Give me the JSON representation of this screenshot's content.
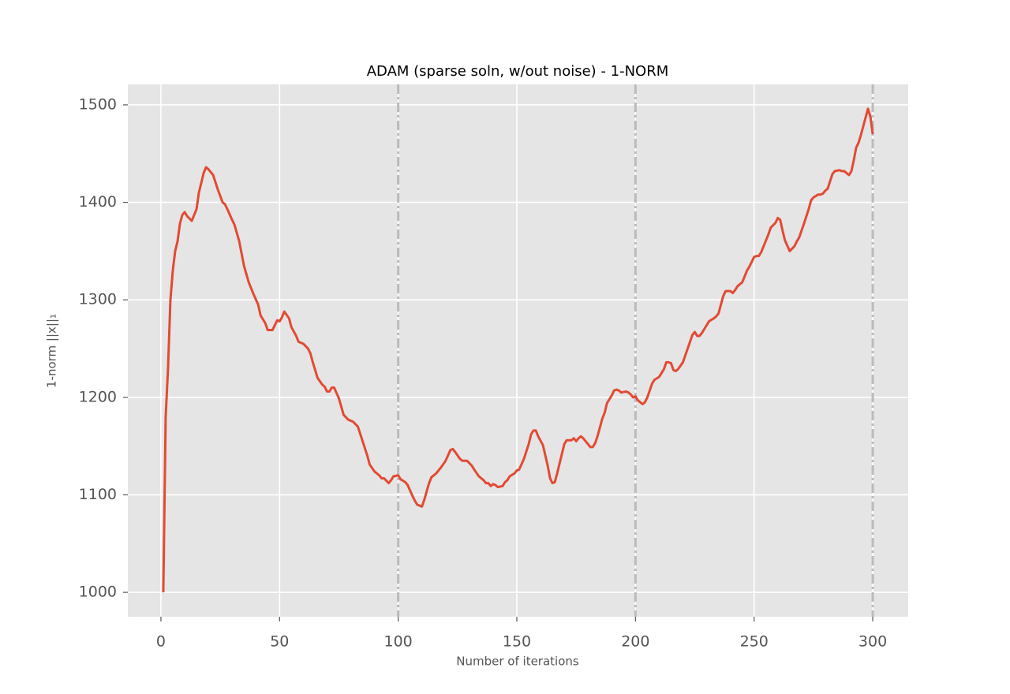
{
  "chart_data": {
    "type": "line",
    "title": "ADAM (sparse soln, w/out noise) - 1-NORM",
    "xlabel": "Number of iterations",
    "ylabel": "1-norm ||x||₁",
    "color": "#e24a33",
    "background": "#e5e5e5",
    "grid": true,
    "xlim": [
      -13.95,
      314.95
    ],
    "ylim": [
      975,
      1521
    ],
    "xticks": [
      0,
      50,
      100,
      150,
      200,
      250,
      300
    ],
    "yticks": [
      1000,
      1100,
      1200,
      1300,
      1400,
      1500
    ],
    "vlines": [
      100,
      200,
      300
    ],
    "x": [
      1,
      2,
      3,
      4,
      5,
      6,
      7,
      8,
      9,
      10,
      11,
      13,
      15,
      16,
      18,
      19,
      20,
      22,
      24,
      26,
      27,
      28,
      30,
      31,
      33,
      35,
      37,
      39,
      41,
      42,
      44,
      45,
      47,
      49,
      50,
      51,
      52,
      54,
      55,
      57,
      58,
      60,
      62,
      63,
      64,
      66,
      68,
      69,
      70,
      71,
      72,
      73,
      75,
      77,
      79,
      81,
      83,
      85,
      87,
      88,
      90,
      92,
      93,
      94,
      96,
      97,
      98,
      100,
      101,
      103,
      104,
      106,
      107,
      108,
      110,
      111,
      113,
      114,
      116,
      118,
      120,
      122,
      123,
      124,
      126,
      127,
      129,
      131,
      132,
      134,
      136,
      137,
      138,
      139,
      140,
      141,
      142,
      144,
      145,
      146,
      147,
      149,
      150,
      151,
      153,
      155,
      156,
      157,
      158,
      159,
      161,
      163,
      164,
      165,
      166,
      167,
      168,
      170,
      171,
      173,
      174,
      175,
      176,
      177,
      178,
      180,
      181,
      182,
      183,
      184,
      186,
      187,
      188,
      190,
      191,
      192,
      193,
      194,
      196,
      197,
      198,
      199,
      200,
      201,
      203,
      204,
      205,
      207,
      208,
      210,
      211,
      212,
      213,
      214,
      215,
      216,
      217,
      218,
      220,
      221,
      223,
      224,
      225,
      226,
      227,
      228,
      230,
      231,
      233,
      234,
      235,
      237,
      238,
      240,
      241,
      242,
      243,
      245,
      247,
      248,
      250,
      251,
      252,
      253,
      255,
      256,
      257,
      259,
      260,
      261,
      262,
      263,
      265,
      267,
      268,
      269,
      271,
      273,
      274,
      275,
      277,
      278,
      279,
      280,
      281,
      283,
      284,
      286,
      287,
      288,
      290,
      291,
      292,
      293,
      294,
      295,
      297,
      298,
      299,
      300
    ],
    "values": [
      1000,
      1180,
      1230,
      1300,
      1330,
      1350,
      1360,
      1378,
      1387,
      1390,
      1386,
      1381,
      1393,
      1410,
      1430,
      1436,
      1434,
      1428,
      1413,
      1400,
      1398,
      1393,
      1382,
      1377,
      1360,
      1335,
      1318,
      1306,
      1295,
      1284,
      1276,
      1269,
      1269,
      1279,
      1278,
      1282,
      1288,
      1281,
      1272,
      1263,
      1257,
      1255,
      1250,
      1245,
      1236,
      1220,
      1213,
      1211,
      1206,
      1206,
      1210,
      1210,
      1199,
      1182,
      1177,
      1175,
      1170,
      1155,
      1140,
      1131,
      1124,
      1120,
      1117,
      1117,
      1112,
      1115,
      1119,
      1120,
      1116,
      1113,
      1110,
      1099,
      1094,
      1090,
      1088,
      1095,
      1112,
      1118,
      1122,
      1128,
      1135,
      1146,
      1147,
      1144,
      1137,
      1135,
      1135,
      1130,
      1126,
      1119,
      1115,
      1112,
      1112,
      1109,
      1111,
      1110,
      1108,
      1109,
      1113,
      1115,
      1119,
      1122,
      1125,
      1126,
      1137,
      1152,
      1162,
      1166,
      1166,
      1160,
      1151,
      1130,
      1117,
      1112,
      1113,
      1122,
      1132,
      1152,
      1156,
      1156,
      1158,
      1155,
      1158,
      1160,
      1158,
      1152,
      1149,
      1149,
      1153,
      1160,
      1178,
      1184,
      1194,
      1202,
      1207,
      1208,
      1207,
      1205,
      1206,
      1205,
      1203,
      1200,
      1201,
      1197,
      1193,
      1195,
      1200,
      1214,
      1218,
      1221,
      1225,
      1229,
      1236,
      1236,
      1235,
      1228,
      1227,
      1229,
      1236,
      1243,
      1257,
      1264,
      1267,
      1263,
      1263,
      1266,
      1274,
      1278,
      1281,
      1283,
      1286,
      1304,
      1309,
      1309,
      1307,
      1310,
      1314,
      1318,
      1330,
      1334,
      1344,
      1345,
      1345,
      1349,
      1361,
      1367,
      1374,
      1379,
      1384,
      1382,
      1371,
      1361,
      1350,
      1355,
      1360,
      1364,
      1378,
      1393,
      1402,
      1405,
      1408,
      1408,
      1409,
      1412,
      1414,
      1429,
      1432,
      1433,
      1432,
      1432,
      1428,
      1432,
      1443,
      1456,
      1461,
      1469,
      1487,
      1496,
      1488,
      1470
    ]
  }
}
